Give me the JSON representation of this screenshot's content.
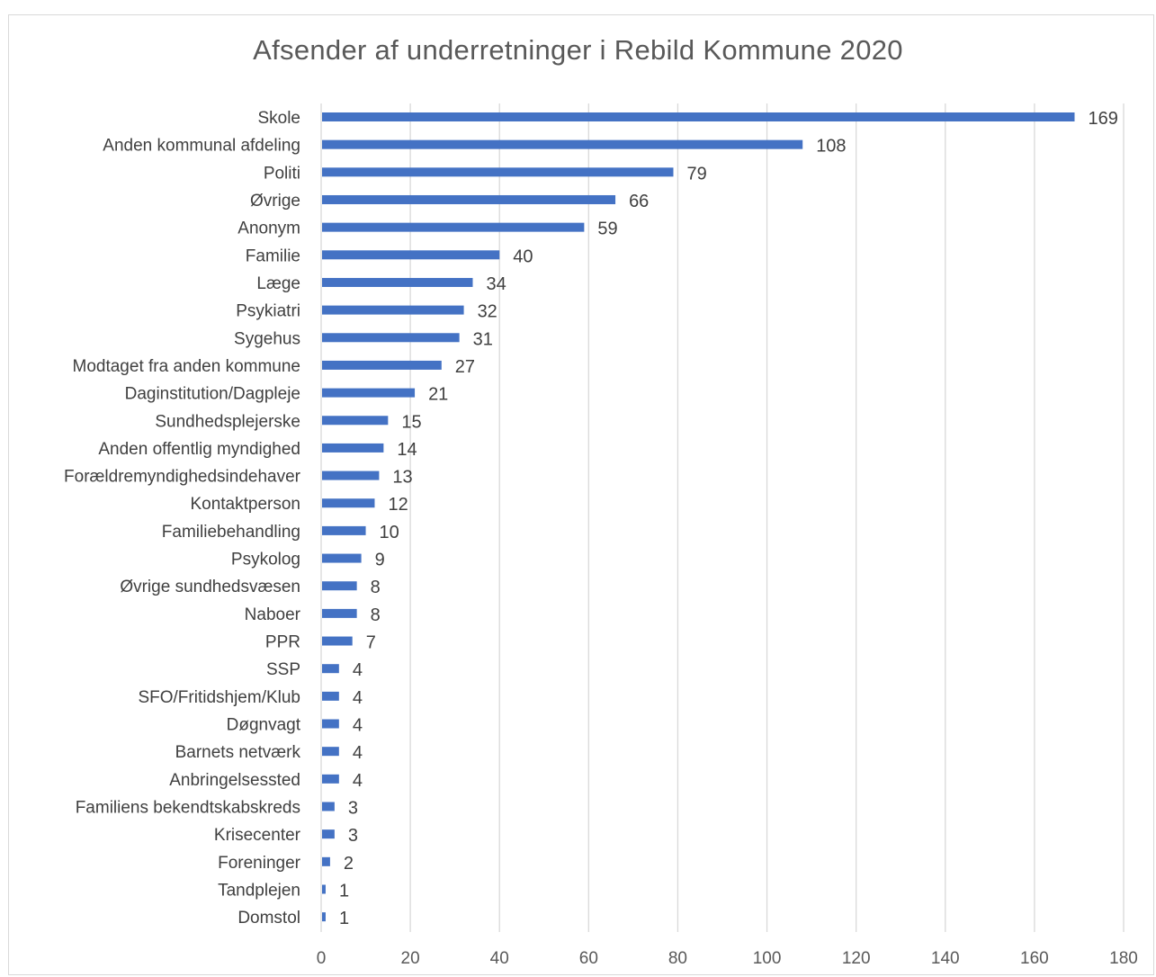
{
  "chart_data": {
    "type": "bar",
    "orientation": "horizontal",
    "title": "Afsender af underretninger i Rebild Kommune 2020",
    "xlabel": "",
    "ylabel": "",
    "xlim": [
      0,
      180
    ],
    "xticks": [
      0,
      20,
      40,
      60,
      80,
      100,
      120,
      140,
      160,
      180
    ],
    "grid": true,
    "bar_color": "#4472c4",
    "data_labels": true,
    "categories": [
      "Skole",
      "Anden kommunal afdeling",
      "Politi",
      "Øvrige",
      "Anonym",
      "Familie",
      "Læge",
      "Psykiatri",
      "Sygehus",
      "Modtaget fra anden kommune",
      "Daginstitution/Dagpleje",
      "Sundhedsplejerske",
      "Anden offentlig myndighed",
      "Forældremyndighedsindehaver",
      "Kontaktperson",
      "Familiebehandling",
      "Psykolog",
      "Øvrige sundhedsvæsen",
      "Naboer",
      "PPR",
      "SSP",
      "SFO/Fritidshjem/Klub",
      "Døgnvagt",
      "Barnets netværk",
      "Anbringelsessted",
      "Familiens bekendtskabskreds",
      "Krisecenter",
      "Foreninger",
      "Tandplejen",
      "Domstol"
    ],
    "values": [
      169,
      108,
      79,
      66,
      59,
      40,
      34,
      32,
      31,
      27,
      21,
      15,
      14,
      13,
      12,
      10,
      9,
      8,
      8,
      7,
      4,
      4,
      4,
      4,
      4,
      3,
      3,
      2,
      1,
      1
    ]
  }
}
